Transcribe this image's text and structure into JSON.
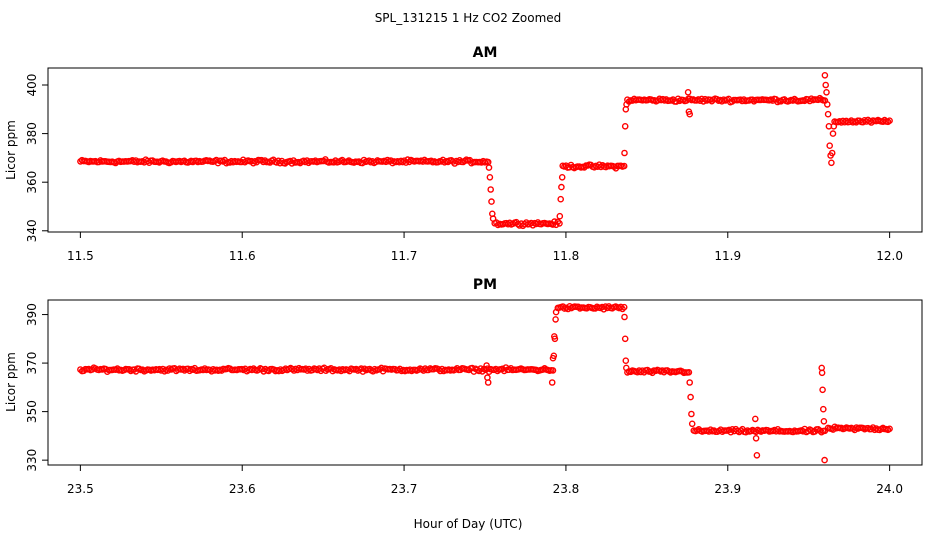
{
  "figure": {
    "suptitle": "SPL_131215  1 Hz CO2 Zoomed",
    "xlabel": "Hour of Day (UTC)",
    "point_color": "#ff0000"
  },
  "chart_data": [
    {
      "type": "scatter",
      "title": "AM",
      "xlabel": "Hour of Day (UTC)",
      "ylabel": "Licor ppm",
      "xlim": [
        11.48,
        12.02
      ],
      "ylim": [
        339.5,
        407
      ],
      "x_ticks": [
        "11.5",
        "11.6",
        "11.7",
        "11.8",
        "11.9",
        "12.0"
      ],
      "y_ticks": [
        "340",
        "360",
        "380",
        "400"
      ],
      "grid": false,
      "series": [
        {
          "marker": "open-circle",
          "segments": [
            {
              "x_start": 11.5,
              "x_end": 11.752,
              "y": 368.5
            },
            {
              "x_start": 11.756,
              "x_end": 11.796,
              "y": 343
            },
            {
              "x_start": 11.798,
              "x_end": 11.836,
              "y": 366.5
            },
            {
              "x_start": 11.838,
              "x_end": 11.96,
              "y": 393.8
            },
            {
              "x_start": 11.966,
              "x_end": 12.0,
              "y": 385
            }
          ],
          "transitions": [
            {
              "x": 11.7525,
              "y": 366
            },
            {
              "x": 11.753,
              "y": 362
            },
            {
              "x": 11.7535,
              "y": 357
            },
            {
              "x": 11.754,
              "y": 352
            },
            {
              "x": 11.7545,
              "y": 347
            },
            {
              "x": 11.755,
              "y": 345
            },
            {
              "x": 11.7962,
              "y": 346
            },
            {
              "x": 11.7968,
              "y": 353
            },
            {
              "x": 11.7972,
              "y": 358
            },
            {
              "x": 11.7977,
              "y": 362
            },
            {
              "x": 11.8362,
              "y": 372
            },
            {
              "x": 11.8366,
              "y": 383
            },
            {
              "x": 11.837,
              "y": 390
            },
            {
              "x": 11.8374,
              "y": 392
            },
            {
              "x": 11.8755,
              "y": 397
            },
            {
              "x": 11.876,
              "y": 389
            },
            {
              "x": 11.8765,
              "y": 388
            },
            {
              "x": 11.96,
              "y": 404
            },
            {
              "x": 11.9605,
              "y": 400
            },
            {
              "x": 11.961,
              "y": 397
            },
            {
              "x": 11.9615,
              "y": 392
            },
            {
              "x": 11.962,
              "y": 388
            },
            {
              "x": 11.9625,
              "y": 383
            },
            {
              "x": 11.963,
              "y": 375
            },
            {
              "x": 11.9635,
              "y": 371
            },
            {
              "x": 11.964,
              "y": 368
            },
            {
              "x": 11.9645,
              "y": 372
            },
            {
              "x": 11.965,
              "y": 380
            },
            {
              "x": 11.9655,
              "y": 383
            }
          ]
        }
      ]
    },
    {
      "type": "scatter",
      "title": "PM",
      "xlabel": "Hour of Day (UTC)",
      "ylabel": "Licor ppm",
      "xlim": [
        23.48,
        24.02
      ],
      "ylim": [
        328,
        396
      ],
      "x_ticks": [
        "23.5",
        "23.6",
        "23.7",
        "23.8",
        "23.9",
        "24.0"
      ],
      "y_ticks": [
        "330",
        "350",
        "370",
        "390"
      ],
      "grid": false,
      "series": [
        {
          "marker": "open-circle",
          "segments": [
            {
              "x_start": 23.5,
              "x_end": 23.792,
              "y": 367.3
            },
            {
              "x_start": 23.795,
              "x_end": 23.836,
              "y": 392.8
            },
            {
              "x_start": 23.838,
              "x_end": 23.876,
              "y": 366.5
            },
            {
              "x_start": 23.879,
              "x_end": 23.96,
              "y": 342
            },
            {
              "x_start": 23.962,
              "x_end": 24.0,
              "y": 343
            }
          ],
          "transitions": [
            {
              "x": 23.751,
              "y": 369
            },
            {
              "x": 23.7515,
              "y": 364
            },
            {
              "x": 23.752,
              "y": 362
            },
            {
              "x": 23.7915,
              "y": 362
            },
            {
              "x": 23.792,
              "y": 372
            },
            {
              "x": 23.7925,
              "y": 373
            },
            {
              "x": 23.7928,
              "y": 381
            },
            {
              "x": 23.7932,
              "y": 380
            },
            {
              "x": 23.7936,
              "y": 388
            },
            {
              "x": 23.7939,
              "y": 391
            },
            {
              "x": 23.8362,
              "y": 389
            },
            {
              "x": 23.8366,
              "y": 380
            },
            {
              "x": 23.837,
              "y": 371
            },
            {
              "x": 23.8373,
              "y": 368
            },
            {
              "x": 23.8765,
              "y": 362
            },
            {
              "x": 23.877,
              "y": 356
            },
            {
              "x": 23.8775,
              "y": 349
            },
            {
              "x": 23.878,
              "y": 345
            },
            {
              "x": 23.917,
              "y": 347
            },
            {
              "x": 23.9175,
              "y": 339
            },
            {
              "x": 23.918,
              "y": 332
            },
            {
              "x": 23.958,
              "y": 368
            },
            {
              "x": 23.9583,
              "y": 366
            },
            {
              "x": 23.9586,
              "y": 359
            },
            {
              "x": 23.959,
              "y": 351
            },
            {
              "x": 23.9594,
              "y": 346
            },
            {
              "x": 23.9598,
              "y": 330
            }
          ]
        }
      ]
    }
  ]
}
